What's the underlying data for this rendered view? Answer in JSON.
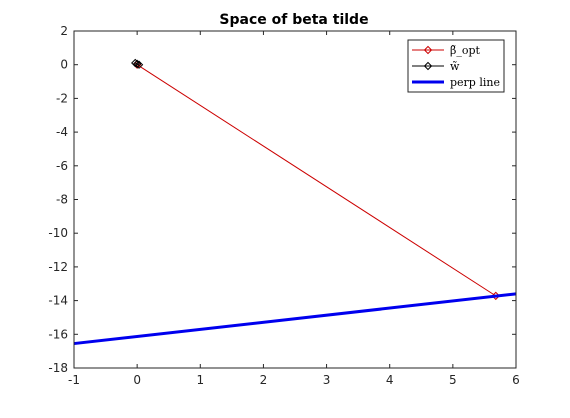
{
  "chart_data": {
    "type": "line",
    "title": "Space of beta tilde",
    "xlabel": "",
    "ylabel": "",
    "xlim": [
      -1,
      6
    ],
    "ylim": [
      -18,
      2
    ],
    "xticks": [
      -1,
      0,
      1,
      2,
      3,
      4,
      5,
      6
    ],
    "yticks": [
      2,
      0,
      -2,
      -4,
      -6,
      -8,
      -10,
      -12,
      -14,
      -16,
      -18
    ],
    "grid": false,
    "legend_position": "top-right",
    "series": [
      {
        "name": "β̃_opt",
        "color": "#cc0000",
        "line_width": 1,
        "marker": "diamond",
        "x": [
          0,
          5.68
        ],
        "y": [
          0,
          -13.72
        ]
      },
      {
        "name": "w̃",
        "color": "#000000",
        "line_width": 1,
        "marker": "diamond",
        "x": [
          -0.03,
          0.0,
          0.03
        ],
        "y": [
          0.1,
          0.05,
          0.0
        ]
      },
      {
        "name": "perp line",
        "color": "#0000ee",
        "line_width": 3,
        "marker": "none",
        "x": [
          -1,
          6
        ],
        "y": [
          -16.55,
          -13.6
        ]
      }
    ]
  }
}
